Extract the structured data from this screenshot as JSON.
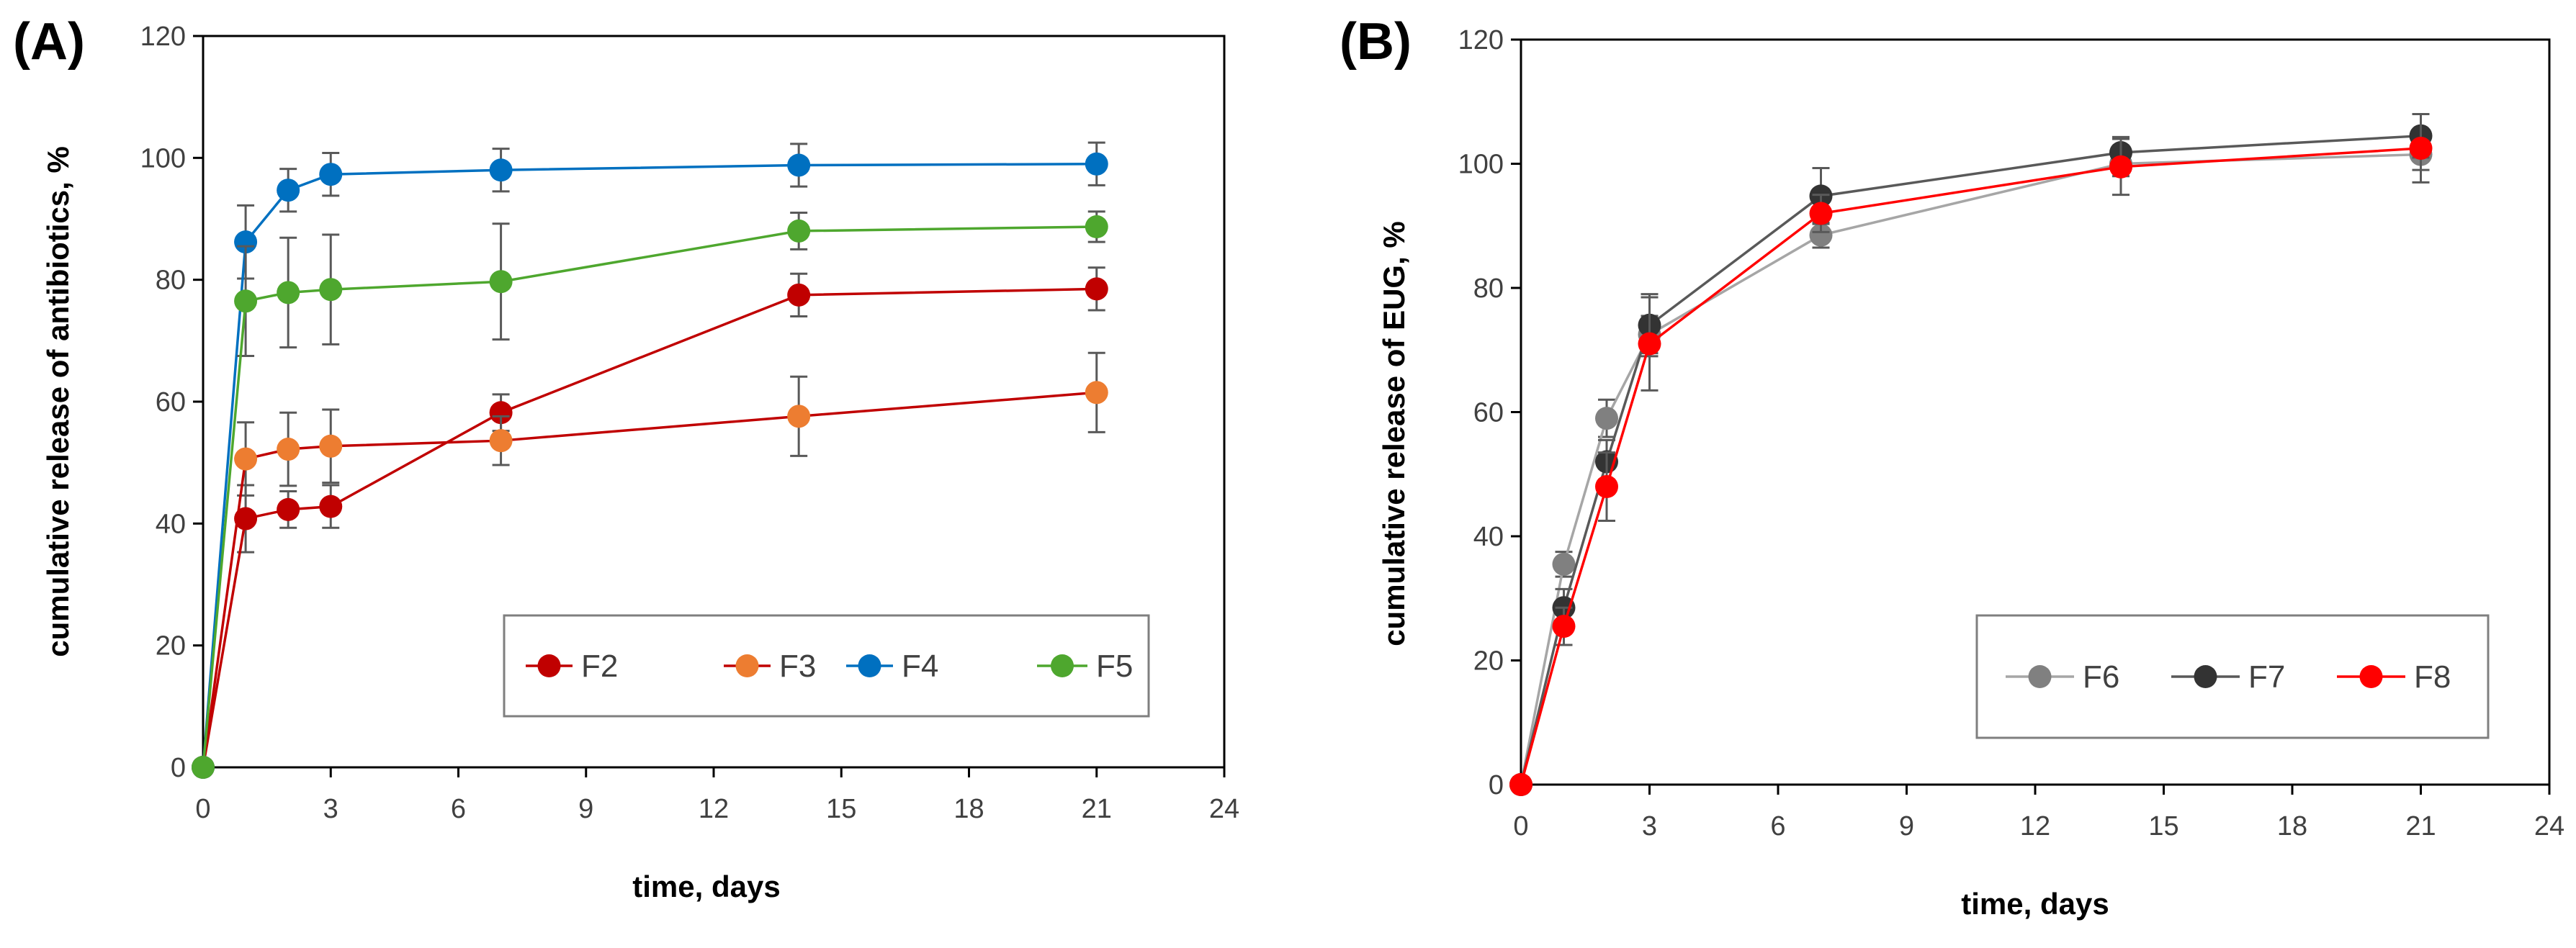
{
  "chart_data": [
    {
      "panel_label": "(A)",
      "type": "line",
      "xlabel": "time, days",
      "ylabel": "cumulative release of antibiotics, %",
      "xlim": [
        0,
        24
      ],
      "ylim": [
        0,
        120
      ],
      "xticks": [
        "0",
        "3",
        "6",
        "9",
        "12",
        "15",
        "18",
        "21",
        "24"
      ],
      "yticks": [
        "0",
        "20",
        "40",
        "60",
        "80",
        "100",
        "120"
      ],
      "x": [
        0,
        1,
        2,
        3,
        7,
        14,
        21
      ],
      "legend_position": "bottom-right",
      "series": [
        {
          "name": "F2",
          "color": "#C00000",
          "marker": "#C00000",
          "values": [
            0,
            40.8,
            42.3,
            42.8,
            58.2,
            77.5,
            78.5
          ],
          "errors": [
            0,
            5.5,
            3.0,
            3.5,
            3.0,
            3.5,
            3.5
          ]
        },
        {
          "name": "F3",
          "color": "#C00000",
          "marker": "#ED7D31",
          "values": [
            0,
            50.6,
            52.2,
            52.7,
            53.6,
            57.6,
            61.5
          ],
          "errors": [
            0,
            6.0,
            6.0,
            6.0,
            4.0,
            6.5,
            6.5
          ]
        },
        {
          "name": "F4",
          "color": "#0070C0",
          "marker": "#0070C0",
          "values": [
            0,
            86.2,
            94.7,
            97.3,
            98.0,
            98.8,
            99.0
          ],
          "errors": [
            0,
            6.0,
            3.5,
            3.5,
            3.5,
            3.5,
            3.5
          ]
        },
        {
          "name": "F5",
          "color": "#4EA72E",
          "marker": "#4EA72E",
          "values": [
            0,
            76.5,
            77.9,
            78.4,
            79.7,
            88.0,
            88.7
          ],
          "errors": [
            0,
            9.0,
            9.0,
            9.0,
            9.5,
            3.0,
            2.5
          ]
        }
      ]
    },
    {
      "panel_label": "(B)",
      "type": "line",
      "xlabel": "time, days",
      "ylabel": "cumulative release of EUG, %",
      "xlim": [
        0,
        24
      ],
      "ylim": [
        0,
        120
      ],
      "xticks": [
        "0",
        "3",
        "6",
        "9",
        "12",
        "15",
        "18",
        "21",
        "24"
      ],
      "yticks": [
        "0",
        "20",
        "40",
        "60",
        "80",
        "100",
        "120"
      ],
      "x": [
        0,
        1,
        2,
        3,
        7,
        14,
        21
      ],
      "legend_position": "bottom-right",
      "series": [
        {
          "name": "F6",
          "color": "#A6A6A6",
          "marker": "#808080",
          "values": [
            0,
            35.5,
            59.0,
            72.5,
            88.5,
            100.0,
            101.5
          ],
          "errors": [
            0,
            2.0,
            3.0,
            3.0,
            2.0,
            2.0,
            2.5
          ]
        },
        {
          "name": "F7",
          "color": "#595959",
          "marker": "#333333",
          "values": [
            0,
            28.5,
            52.0,
            74.0,
            94.8,
            101.8,
            104.5
          ],
          "errors": [
            0,
            3.0,
            3.5,
            5.0,
            4.5,
            2.5,
            3.5
          ]
        },
        {
          "name": "F8",
          "color": "#FF0000",
          "marker": "#FF0000",
          "values": [
            0,
            25.5,
            48.0,
            71.0,
            92.0,
            99.5,
            102.5
          ],
          "errors": [
            0,
            3.0,
            5.5,
            7.5,
            3.0,
            4.5,
            5.5
          ]
        }
      ]
    }
  ]
}
